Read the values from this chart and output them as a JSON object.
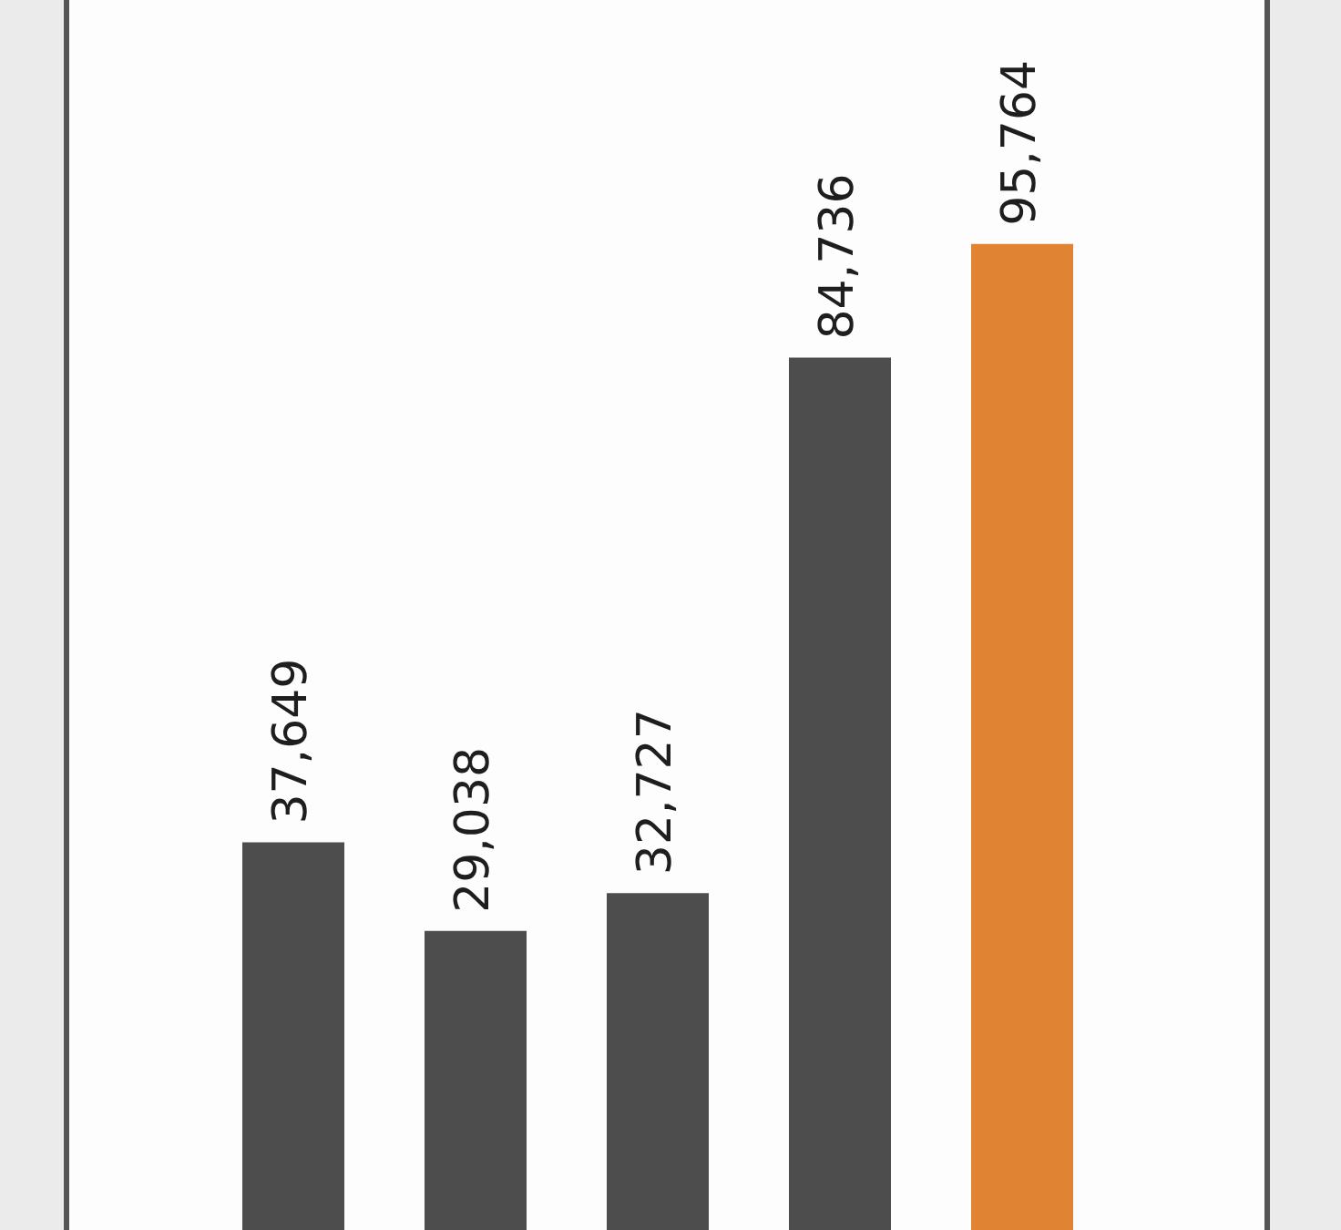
{
  "chart_data": {
    "type": "bar",
    "categories": [
      null,
      null,
      null,
      null,
      null
    ],
    "values": [
      37649,
      29038,
      32727,
      84736,
      95764
    ],
    "value_labels": [
      "37,649",
      "29,038",
      "32,727",
      "84,736",
      "95,764"
    ],
    "colors": [
      "#4d4d4d",
      "#4d4d4d",
      "#4d4d4d",
      "#4d4d4d",
      "#e08434"
    ],
    "legend": false,
    "tick_labels": false
  }
}
